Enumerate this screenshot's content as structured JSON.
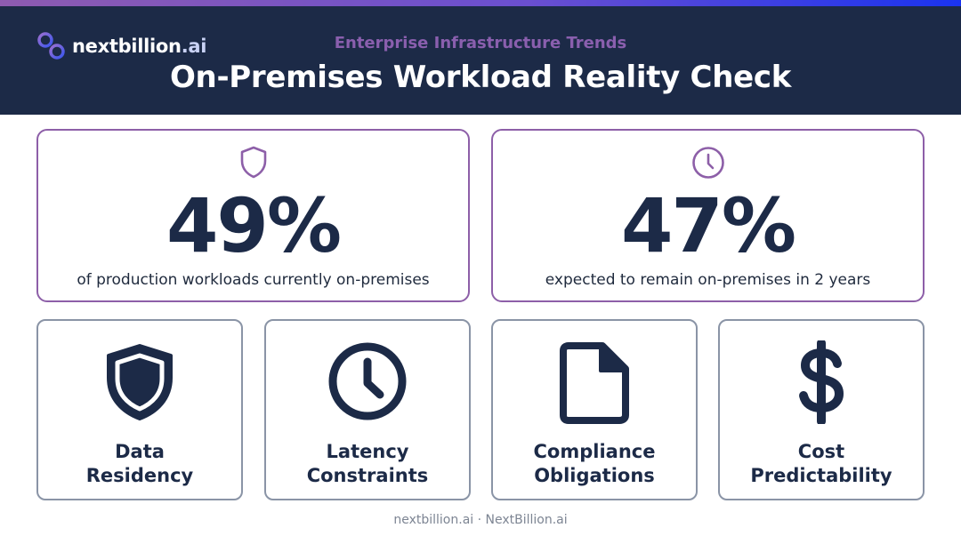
{
  "brand": {
    "logo_part1": "nextbillion",
    "logo_part2": ".ai"
  },
  "header": {
    "subtitle": "Enterprise Infrastructure Trends",
    "title": "On-Premises Workload Reality Check"
  },
  "stats": [
    {
      "icon": "shield-icon",
      "value": "49%",
      "label": "of production workloads currently on-premises"
    },
    {
      "icon": "clock-icon",
      "value": "47%",
      "label": "expected to remain on-premises in 2 years"
    }
  ],
  "factors": [
    {
      "icon": "shield-icon",
      "line1": "Data",
      "line2": "Residency"
    },
    {
      "icon": "clock-icon",
      "line1": "Latency",
      "line2": "Constraints"
    },
    {
      "icon": "document-icon",
      "line1": "Compliance",
      "line2": "Obligations"
    },
    {
      "icon": "dollar-icon",
      "line1": "Cost",
      "line2": "Predictability"
    }
  ],
  "footer": "nextbillion.ai · NextBillion.ai",
  "colors": {
    "header_bg": "#1c2a47",
    "accent_purple": "#8d5fa8",
    "text_navy": "#1c2a47",
    "card_border": "#8a94a6"
  }
}
